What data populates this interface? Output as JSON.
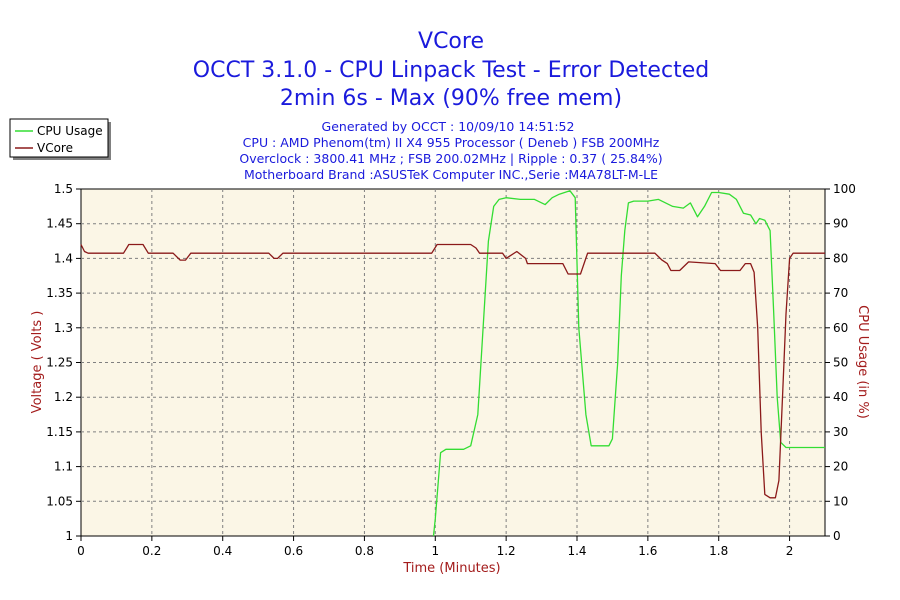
{
  "title_lines": [
    "VCore",
    "OCCT 3.1.0 - CPU Linpack Test - Error Detected",
    "2min 6s - Max (90% free mem)"
  ],
  "info_lines": [
    "Generated by OCCT : 10/09/10 14:51:52",
    "CPU : AMD Phenom(tm) II X4 955 Processor ( Deneb ) FSB 200MHz",
    "Overclock : 3800.41 MHz ; FSB 200.02MHz | Ripple : 0.37 ( 25.84%)",
    "Motherboard Brand :ASUSTeK Computer INC.,Serie :M4A78LT-M-LE"
  ],
  "colors": {
    "title": "#1a1adc",
    "axis_label": "#a31c1c",
    "plot_bg": "#fbf6e6",
    "grid": "#808080",
    "cpu_usage": "#33dd33",
    "vcore": "#8b1a1a"
  },
  "chart_data": {
    "type": "line",
    "xlabel": "Time (Minutes)",
    "ylabel": "Voltage ( Volts )",
    "y2label": "CPU Usage (in %)",
    "xlim": [
      0,
      2.1
    ],
    "ylim": [
      1,
      1.5
    ],
    "y2lim": [
      0,
      100
    ],
    "x_ticks": [
      "0",
      "0.2",
      "0.4",
      "0.6",
      "0.8",
      "1",
      "1.2",
      "1.4",
      "1.6",
      "1.8",
      "2"
    ],
    "x_tick_values": [
      0,
      0.2,
      0.4,
      0.6,
      0.8,
      1,
      1.2,
      1.4,
      1.6,
      1.8,
      2
    ],
    "y_ticks": [
      "1",
      "1.05",
      "1.1",
      "1.15",
      "1.2",
      "1.25",
      "1.3",
      "1.35",
      "1.4",
      "1.45",
      "1.5"
    ],
    "y_tick_values": [
      1,
      1.05,
      1.1,
      1.15,
      1.2,
      1.25,
      1.3,
      1.35,
      1.4,
      1.45,
      1.5
    ],
    "y2_ticks": [
      "0",
      "10",
      "20",
      "30",
      "40",
      "50",
      "60",
      "70",
      "80",
      "90",
      "100"
    ],
    "y2_tick_values": [
      0,
      10,
      20,
      30,
      40,
      50,
      60,
      70,
      80,
      90,
      100
    ],
    "grid": true,
    "legend_position": "top-left",
    "series": [
      {
        "name": "CPU Usage",
        "axis": "right",
        "points": [
          [
            0.995,
            0
          ],
          [
            1.0,
            5
          ],
          [
            1.015,
            24
          ],
          [
            1.03,
            25
          ],
          [
            1.08,
            25
          ],
          [
            1.1,
            26
          ],
          [
            1.12,
            35
          ],
          [
            1.135,
            60
          ],
          [
            1.15,
            85
          ],
          [
            1.165,
            95
          ],
          [
            1.18,
            97
          ],
          [
            1.2,
            97.5
          ],
          [
            1.24,
            97
          ],
          [
            1.28,
            97
          ],
          [
            1.31,
            95.5
          ],
          [
            1.33,
            97.5
          ],
          [
            1.35,
            98.5
          ],
          [
            1.38,
            99.5
          ],
          [
            1.395,
            97.5
          ],
          [
            1.405,
            60
          ],
          [
            1.425,
            35
          ],
          [
            1.44,
            26
          ],
          [
            1.47,
            26
          ],
          [
            1.49,
            26
          ],
          [
            1.5,
            28
          ],
          [
            1.515,
            50
          ],
          [
            1.525,
            75
          ],
          [
            1.535,
            88
          ],
          [
            1.545,
            96
          ],
          [
            1.56,
            96.5
          ],
          [
            1.6,
            96.5
          ],
          [
            1.63,
            97
          ],
          [
            1.65,
            96
          ],
          [
            1.67,
            95
          ],
          [
            1.7,
            94.5
          ],
          [
            1.72,
            96
          ],
          [
            1.74,
            92
          ],
          [
            1.76,
            95
          ],
          [
            1.78,
            99
          ],
          [
            1.8,
            99
          ],
          [
            1.83,
            98.5
          ],
          [
            1.85,
            97
          ],
          [
            1.87,
            93
          ],
          [
            1.89,
            92.5
          ],
          [
            1.905,
            90
          ],
          [
            1.915,
            91.5
          ],
          [
            1.93,
            91
          ],
          [
            1.945,
            88
          ],
          [
            1.955,
            65
          ],
          [
            1.965,
            40
          ],
          [
            1.975,
            27
          ],
          [
            1.99,
            25.5
          ],
          [
            2.02,
            25.5
          ],
          [
            2.05,
            25.5
          ],
          [
            2.1,
            25.5
          ]
        ]
      },
      {
        "name": "VCore",
        "axis": "left",
        "points": [
          [
            0,
            1.42
          ],
          [
            0.01,
            1.41
          ],
          [
            0.02,
            1.4075
          ],
          [
            0.12,
            1.4075
          ],
          [
            0.135,
            1.42
          ],
          [
            0.175,
            1.42
          ],
          [
            0.19,
            1.4075
          ],
          [
            0.26,
            1.4075
          ],
          [
            0.28,
            1.3975
          ],
          [
            0.295,
            1.3975
          ],
          [
            0.31,
            1.4075
          ],
          [
            0.53,
            1.4075
          ],
          [
            0.545,
            1.4
          ],
          [
            0.555,
            1.4
          ],
          [
            0.57,
            1.4075
          ],
          [
            0.99,
            1.4075
          ],
          [
            1.005,
            1.42
          ],
          [
            1.1,
            1.42
          ],
          [
            1.115,
            1.415
          ],
          [
            1.125,
            1.4075
          ],
          [
            1.19,
            1.4075
          ],
          [
            1.2,
            1.4
          ],
          [
            1.23,
            1.41
          ],
          [
            1.255,
            1.4
          ],
          [
            1.26,
            1.3925
          ],
          [
            1.36,
            1.3925
          ],
          [
            1.375,
            1.3775
          ],
          [
            1.41,
            1.3775
          ],
          [
            1.43,
            1.4075
          ],
          [
            1.62,
            1.4075
          ],
          [
            1.64,
            1.3975
          ],
          [
            1.655,
            1.3925
          ],
          [
            1.665,
            1.3825
          ],
          [
            1.69,
            1.3825
          ],
          [
            1.715,
            1.395
          ],
          [
            1.79,
            1.3925
          ],
          [
            1.805,
            1.3825
          ],
          [
            1.86,
            1.3825
          ],
          [
            1.875,
            1.3925
          ],
          [
            1.89,
            1.3925
          ],
          [
            1.9,
            1.38
          ],
          [
            1.91,
            1.3
          ],
          [
            1.92,
            1.15
          ],
          [
            1.93,
            1.06
          ],
          [
            1.945,
            1.055
          ],
          [
            1.96,
            1.055
          ],
          [
            1.97,
            1.08
          ],
          [
            1.98,
            1.2
          ],
          [
            1.99,
            1.32
          ],
          [
            2.0,
            1.4
          ],
          [
            2.01,
            1.4075
          ],
          [
            2.1,
            1.4075
          ]
        ]
      }
    ]
  }
}
